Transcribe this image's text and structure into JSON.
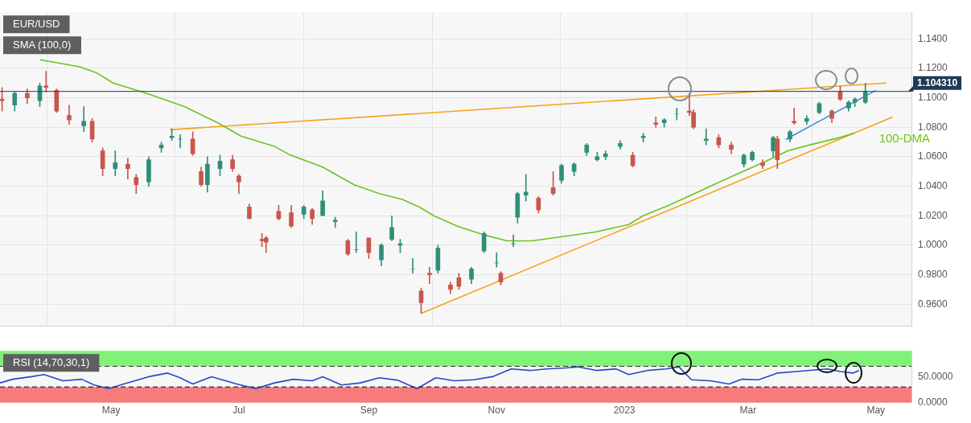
{
  "chart_data": [
    {
      "type": "candlestick",
      "title": "EUR/USD",
      "annotations": [
        "SMA (100,0)"
      ],
      "x": [
        "2022-03-10",
        "2022-03-16",
        "2022-03-22",
        "2022-03-28",
        "2022-03-31",
        "2022-04-05",
        "2022-04-11",
        "2022-04-18",
        "2022-04-22",
        "2022-04-27",
        "2022-05-03",
        "2022-05-09",
        "2022-05-13",
        "2022-05-19",
        "2022-05-25",
        "2022-05-30",
        "2022-06-03",
        "2022-06-09",
        "2022-06-13",
        "2022-06-16",
        "2022-06-22",
        "2022-06-28",
        "2022-07-01",
        "2022-07-06",
        "2022-07-12",
        "2022-07-14",
        "2022-07-20",
        "2022-07-26",
        "2022-08-01",
        "2022-08-05",
        "2022-08-10",
        "2022-08-16",
        "2022-08-22",
        "2022-08-26",
        "2022-09-01",
        "2022-09-07",
        "2022-09-12",
        "2022-09-16",
        "2022-09-22",
        "2022-09-26",
        "2022-09-30",
        "2022-10-04",
        "2022-10-10",
        "2022-10-14",
        "2022-10-20",
        "2022-10-26",
        "2022-11-01",
        "2022-11-03",
        "2022-11-09",
        "2022-11-11",
        "2022-11-15",
        "2022-11-21",
        "2022-11-28",
        "2022-12-02",
        "2022-12-08",
        "2022-12-14",
        "2022-12-19",
        "2022-12-23",
        "2022-12-30",
        "2023-01-05",
        "2023-01-10",
        "2023-01-16",
        "2023-01-20",
        "2023-01-26",
        "2023-02-01",
        "2023-02-03",
        "2023-02-09",
        "2023-02-15",
        "2023-02-21",
        "2023-02-27",
        "2023-03-03",
        "2023-03-08",
        "2023-03-13",
        "2023-03-15",
        "2023-03-21",
        "2023-03-23",
        "2023-03-29",
        "2023-04-04",
        "2023-04-10",
        "2023-04-14",
        "2023-04-18",
        "2023-04-21",
        "2023-04-26"
      ],
      "ohlc": [
        [
          1.099,
          1.107,
          1.091,
          1.098
        ],
        [
          1.095,
          1.104,
          1.091,
          1.103
        ],
        [
          1.103,
          1.106,
          1.096,
          1.1
        ],
        [
          1.098,
          1.11,
          1.094,
          1.108
        ],
        [
          1.108,
          1.118,
          1.104,
          1.107
        ],
        [
          1.105,
          1.106,
          1.09,
          1.091
        ],
        [
          1.088,
          1.095,
          1.082,
          1.085
        ],
        [
          1.081,
          1.094,
          1.077,
          1.084
        ],
        [
          1.084,
          1.086,
          1.07,
          1.072
        ],
        [
          1.064,
          1.066,
          1.047,
          1.052
        ],
        [
          1.052,
          1.064,
          1.047,
          1.056
        ],
        [
          1.055,
          1.059,
          1.045,
          1.052
        ],
        [
          1.046,
          1.048,
          1.035,
          1.041
        ],
        [
          1.043,
          1.06,
          1.04,
          1.058
        ],
        [
          1.066,
          1.07,
          1.063,
          1.068
        ],
        [
          1.073,
          1.079,
          1.071,
          1.074
        ],
        [
          1.072,
          1.075,
          1.066,
          1.072
        ],
        [
          1.072,
          1.077,
          1.061,
          1.062
        ],
        [
          1.05,
          1.053,
          1.04,
          1.041
        ],
        [
          1.041,
          1.06,
          1.036,
          1.055
        ],
        [
          1.052,
          1.061,
          1.047,
          1.057
        ],
        [
          1.058,
          1.061,
          1.05,
          1.052
        ],
        [
          1.047,
          1.048,
          1.035,
          1.043
        ],
        [
          1.026,
          1.028,
          1.018,
          1.018
        ],
        [
          1.004,
          1.008,
          0.999,
          1.003
        ],
        [
          1.005,
          1.006,
          0.995,
          1.002
        ],
        [
          1.023,
          1.027,
          1.017,
          1.018
        ],
        [
          1.022,
          1.027,
          1.012,
          1.013
        ],
        [
          1.021,
          1.027,
          1.018,
          1.026
        ],
        [
          1.024,
          1.025,
          1.014,
          1.018
        ],
        [
          1.02,
          1.037,
          1.02,
          1.03
        ],
        [
          1.016,
          1.019,
          1.012,
          1.017
        ],
        [
          1.003,
          1.004,
          0.993,
          0.994
        ],
        [
          0.997,
          1.009,
          0.995,
          0.997
        ],
        [
          1.005,
          1.005,
          0.991,
          0.995
        ],
        [
          0.99,
          1.001,
          0.986,
          1.0
        ],
        [
          1.004,
          1.02,
          1.003,
          1.012
        ],
        [
          1.0,
          1.004,
          0.995,
          1.001
        ],
        [
          0.984,
          0.991,
          0.981,
          0.984
        ],
        [
          0.969,
          0.971,
          0.954,
          0.961
        ],
        [
          0.981,
          0.985,
          0.974,
          0.98
        ],
        [
          0.983,
          1.0,
          0.981,
          0.998
        ],
        [
          0.973,
          0.975,
          0.967,
          0.97
        ],
        [
          0.978,
          0.981,
          0.97,
          0.972
        ],
        [
          0.977,
          0.985,
          0.974,
          0.984
        ],
        [
          0.996,
          1.009,
          0.995,
          1.008
        ],
        [
          0.988,
          0.995,
          0.985,
          0.988
        ],
        [
          0.981,
          0.982,
          0.973,
          0.975
        ],
        [
          1.001,
          1.007,
          0.999,
          1.001
        ],
        [
          1.019,
          1.036,
          1.015,
          1.035
        ],
        [
          1.034,
          1.048,
          1.03,
          1.036
        ],
        [
          1.032,
          1.033,
          1.022,
          1.024
        ],
        [
          1.039,
          1.05,
          1.034,
          1.035
        ],
        [
          1.044,
          1.055,
          1.042,
          1.054
        ],
        [
          1.05,
          1.056,
          1.047,
          1.055
        ],
        [
          1.063,
          1.069,
          1.061,
          1.068
        ],
        [
          1.058,
          1.063,
          1.057,
          1.06
        ],
        [
          1.06,
          1.064,
          1.058,
          1.062
        ],
        [
          1.067,
          1.071,
          1.065,
          1.069
        ],
        [
          1.061,
          1.063,
          1.053,
          1.054
        ],
        [
          1.073,
          1.076,
          1.07,
          1.074
        ],
        [
          1.083,
          1.087,
          1.08,
          1.082
        ],
        [
          1.083,
          1.086,
          1.08,
          1.085
        ],
        [
          1.089,
          1.093,
          1.085,
          1.089
        ],
        [
          1.091,
          1.103,
          1.088,
          1.09
        ],
        [
          1.09,
          1.092,
          1.079,
          1.08
        ],
        [
          1.071,
          1.079,
          1.068,
          1.072
        ],
        [
          1.073,
          1.075,
          1.066,
          1.068
        ],
        [
          1.068,
          1.07,
          1.062,
          1.065
        ],
        [
          1.055,
          1.062,
          1.053,
          1.061
        ],
        [
          1.058,
          1.064,
          1.057,
          1.063
        ],
        [
          1.056,
          1.058,
          1.052,
          1.054
        ],
        [
          1.064,
          1.074,
          1.06,
          1.073
        ],
        [
          1.072,
          1.074,
          1.052,
          1.058
        ],
        [
          1.072,
          1.078,
          1.07,
          1.077
        ],
        [
          1.084,
          1.093,
          1.082,
          1.083
        ],
        [
          1.084,
          1.088,
          1.082,
          1.086
        ],
        [
          1.09,
          1.097,
          1.089,
          1.096
        ],
        [
          1.091,
          1.092,
          1.083,
          1.086
        ],
        [
          1.104,
          1.108,
          1.098,
          1.099
        ],
        [
          1.093,
          1.098,
          1.091,
          1.097
        ],
        [
          1.097,
          1.1,
          1.094,
          1.099
        ],
        [
          1.097,
          1.11,
          1.096,
          1.104
        ]
      ],
      "series": [
        {
          "name": "100-DMA",
          "type": "line",
          "color": "#6ac51f",
          "x": [
            "2022-03-28",
            "2022-04-16",
            "2022-04-24",
            "2022-05-02",
            "2022-05-17",
            "2022-06-05",
            "2022-06-21",
            "2022-07-02",
            "2022-07-18",
            "2022-07-25",
            "2022-08-10",
            "2022-08-25",
            "2022-09-06",
            "2022-09-17",
            "2022-09-25",
            "2022-10-02",
            "2022-10-14",
            "2022-10-26",
            "2022-11-06",
            "2022-11-18",
            "2022-12-03",
            "2022-12-18",
            "2023-01-03",
            "2023-01-10",
            "2023-01-22",
            "2023-02-02",
            "2023-02-14",
            "2023-02-25",
            "2023-03-09",
            "2023-03-20",
            "2023-04-01",
            "2023-04-13",
            "2023-04-21"
          ],
          "values": [
            1.1258,
            1.121,
            1.117,
            1.11,
            1.1035,
            1.094,
            1.083,
            1.074,
            1.067,
            1.0615,
            1.053,
            1.041,
            1.035,
            1.031,
            1.026,
            1.02,
            1.0125,
            1.007,
            1.003,
            1.003,
            1.006,
            1.009,
            1.014,
            1.02,
            1.027,
            1.034,
            1.042,
            1.049,
            1.0565,
            1.064,
            1.0686,
            1.0727,
            1.0762
          ]
        },
        {
          "type": "line",
          "color": "#f5a31a",
          "x": [
            "2022-05-29",
            "2023-05-06"
          ],
          "values": [
            1.0783,
            1.11
          ]
        },
        {
          "type": "line",
          "color": "#f5a31a",
          "x": [
            "2022-09-26",
            "2023-05-09"
          ],
          "values": [
            0.9538,
            1.0869
          ]
        },
        {
          "type": "line",
          "color": "#3b8fe0",
          "x": [
            "2023-03-19",
            "2023-05-01"
          ],
          "values": [
            1.0717,
            1.105
          ]
        }
      ],
      "ref_lines": [
        {
          "axis": "y",
          "value": 1.10431,
          "label": "1.104310",
          "color": "#1e3a56"
        }
      ],
      "xlim": [
        "2022-03-09",
        "2023-05-18"
      ],
      "xticks": [
        {
          "value": "2022-05-01",
          "label": null
        },
        {
          "value": "2022-07-01",
          "label": null
        },
        {
          "value": "2022-09-01",
          "label": null
        },
        {
          "value": "2022-11-01",
          "label": null
        },
        {
          "value": "2023-01-01",
          "label": null
        },
        {
          "value": "2023-03-01",
          "label": null
        },
        {
          "value": "2023-05-01",
          "label": null
        }
      ],
      "ylim": [
        0.945,
        1.158
      ],
      "yticks": [
        {
          "value": 0.96,
          "label": "0.9600"
        },
        {
          "value": 0.98,
          "label": "0.9800"
        },
        {
          "value": 1.0,
          "label": "1.0000"
        },
        {
          "value": 1.02,
          "label": "1.0200"
        },
        {
          "value": 1.04,
          "label": "1.0400"
        },
        {
          "value": 1.06,
          "label": "1.0600"
        },
        {
          "value": 1.08,
          "label": "1.0800"
        },
        {
          "value": 1.1,
          "label": "1.1000"
        },
        {
          "value": 1.12,
          "label": "1.1200"
        },
        {
          "value": 1.14,
          "label": "1.1400"
        }
      ],
      "tick_labels": "y",
      "grid": true
    },
    {
      "type": "line",
      "title": "RSI (14,70,30,1)",
      "x": [
        "2022-03-09",
        "2022-03-15",
        "2022-03-24",
        "2022-03-30",
        "2022-04-08",
        "2022-04-17",
        "2022-04-23",
        "2022-04-30",
        "2022-05-07",
        "2022-05-19",
        "2022-05-28",
        "2022-06-03",
        "2022-06-09",
        "2022-06-18",
        "2022-06-30",
        "2022-07-09",
        "2022-07-18",
        "2022-07-27",
        "2022-08-05",
        "2022-08-10",
        "2022-08-19",
        "2022-08-28",
        "2022-09-06",
        "2022-09-15",
        "2022-09-24",
        "2022-10-03",
        "2022-10-12",
        "2022-10-21",
        "2022-10-30",
        "2022-11-08",
        "2022-11-17",
        "2022-11-25",
        "2022-12-04",
        "2022-12-10",
        "2022-12-19",
        "2022-12-28",
        "2023-01-03",
        "2023-01-12",
        "2023-01-21",
        "2023-01-27",
        "2023-02-02",
        "2023-02-11",
        "2023-02-20",
        "2023-02-26",
        "2023-03-06",
        "2023-03-15",
        "2023-03-24",
        "2023-04-02",
        "2023-04-08",
        "2023-04-14",
        "2023-04-20",
        "2023-04-23"
      ],
      "series": [
        {
          "color": "#2a46c8",
          "values": [
            38,
            45,
            50,
            54,
            42,
            45,
            34,
            27,
            36,
            50,
            57,
            48,
            36,
            50,
            36,
            27,
            38,
            45,
            42,
            50,
            34,
            38,
            48,
            43,
            27,
            48,
            42,
            44,
            50,
            65,
            62,
            65,
            67,
            69,
            62,
            65,
            54,
            62,
            65,
            69,
            44,
            42,
            36,
            45,
            44,
            57,
            60,
            63,
            65,
            60,
            57,
            62
          ]
        }
      ],
      "ref_lines": [
        {
          "axis": "y",
          "value": 70,
          "color": "#333333",
          "line_style": "dashed"
        },
        {
          "axis": "y",
          "value": 30,
          "color": "#333333",
          "line_style": "dashed"
        }
      ],
      "bands": [
        {
          "axis": "y",
          "from": 70,
          "to": 100,
          "color": "#80f27a"
        },
        {
          "axis": "y",
          "from": 0,
          "to": 30,
          "color": "#f77b7b"
        }
      ],
      "xlim": [
        "2022-03-09",
        "2023-05-18"
      ],
      "xticks": [
        {
          "value": "2022-05-01",
          "label": "May"
        },
        {
          "value": "2022-07-01",
          "label": "Jul"
        },
        {
          "value": "2022-09-01",
          "label": "Sep"
        },
        {
          "value": "2022-11-01",
          "label": "Nov"
        },
        {
          "value": "2023-01-01",
          "label": "2023"
        },
        {
          "value": "2023-03-01",
          "label": "Mar"
        },
        {
          "value": "2023-05-01",
          "label": "May"
        }
      ],
      "ylim": [
        0,
        100
      ],
      "yticks": [
        {
          "value": 0,
          "label": "0.0000"
        },
        {
          "value": 50,
          "label": "50.0000"
        }
      ]
    }
  ]
}
